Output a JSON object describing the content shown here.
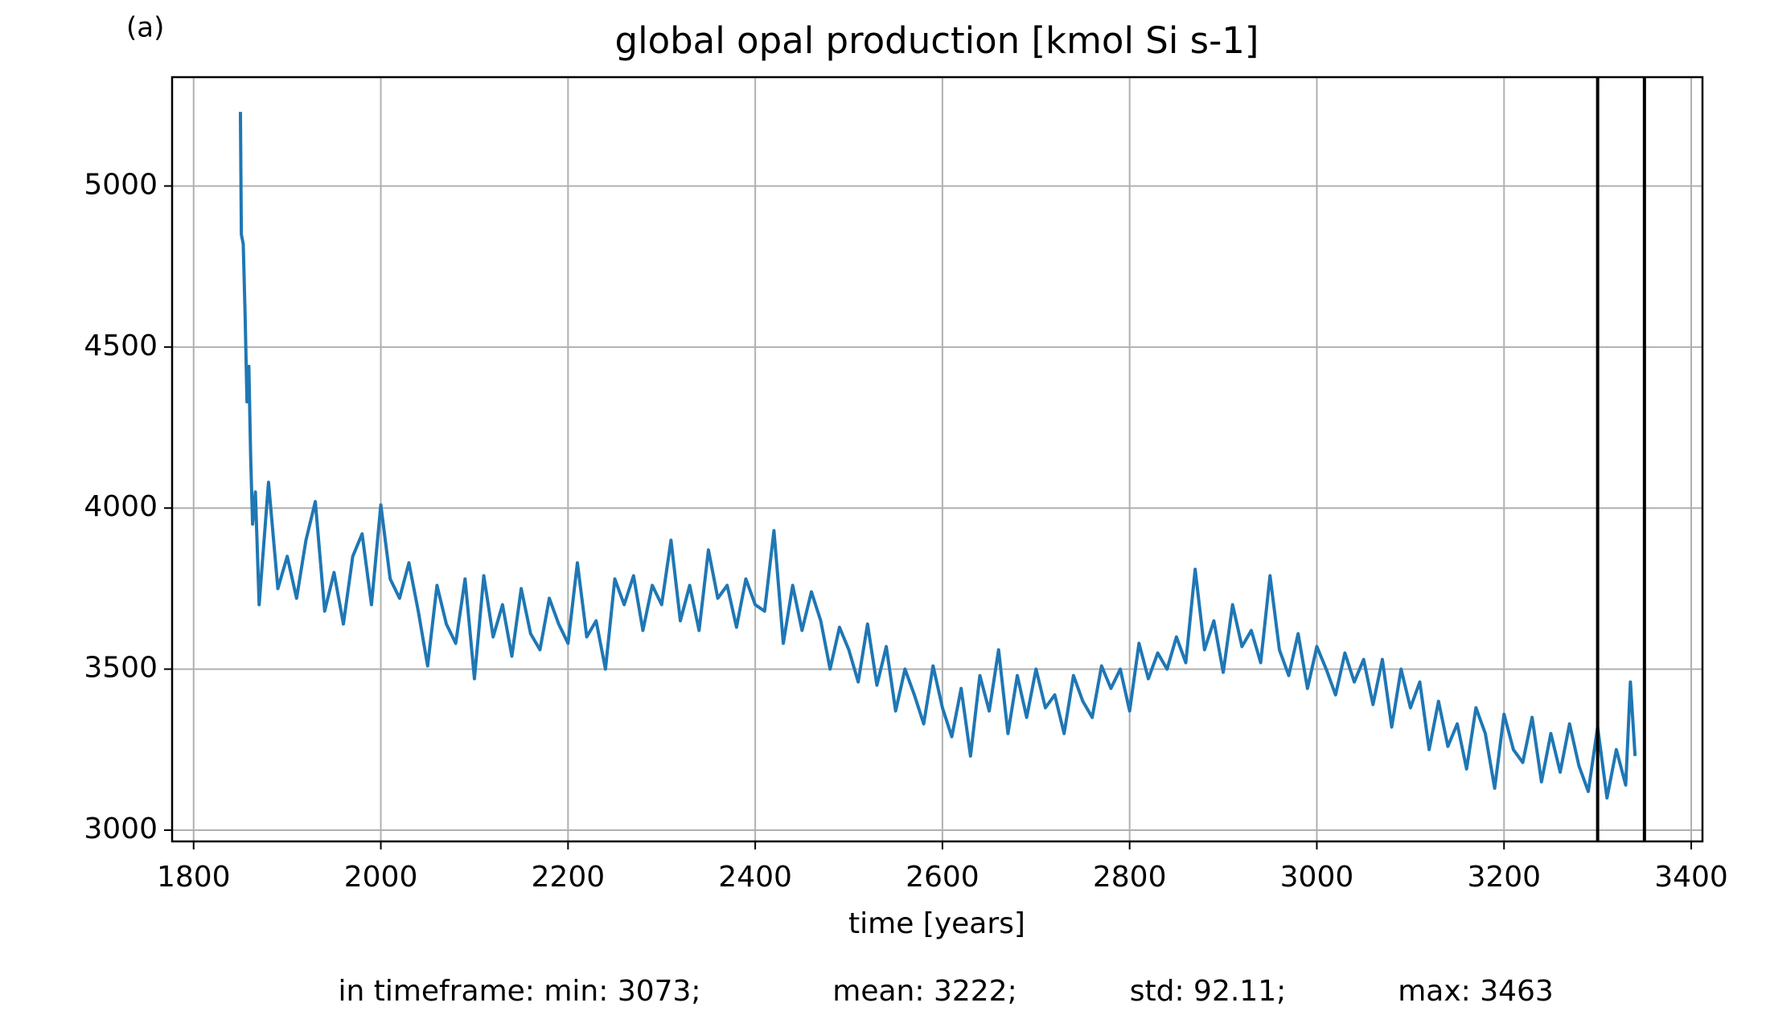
{
  "chart_data": {
    "type": "line",
    "panel_label": "(a)",
    "title": "global opal production [kmol Si s-1]",
    "x_label": "time [years]",
    "footer": [
      "in timeframe: min: 3073;",
      "mean: 3222;",
      "std: 92.11;",
      "max: 3463"
    ],
    "color": "#1f77b4",
    "grid": true,
    "xlim": [
      1777,
      3412
    ],
    "ylim": [
      2965,
      5338
    ],
    "xticks": [
      1800,
      2000,
      2200,
      2400,
      2600,
      2800,
      3000,
      3200,
      3400
    ],
    "yticks": [
      3000,
      3500,
      4000,
      4500,
      5000
    ],
    "vlines": [
      3300,
      3350
    ],
    "vline_color": "#000000",
    "x": [
      1850,
      1851,
      1853,
      1855,
      1857,
      1859,
      1861,
      1863,
      1866,
      1870,
      1880,
      1890,
      1900,
      1910,
      1920,
      1930,
      1940,
      1950,
      1960,
      1970,
      1980,
      1990,
      2000,
      2010,
      2020,
      2030,
      2040,
      2050,
      2060,
      2070,
      2080,
      2090,
      2100,
      2110,
      2120,
      2130,
      2140,
      2150,
      2160,
      2170,
      2180,
      2190,
      2200,
      2210,
      2220,
      2230,
      2240,
      2250,
      2260,
      2270,
      2280,
      2290,
      2300,
      2310,
      2320,
      2330,
      2340,
      2350,
      2360,
      2370,
      2380,
      2390,
      2400,
      2410,
      2420,
      2430,
      2440,
      2450,
      2460,
      2470,
      2480,
      2490,
      2500,
      2510,
      2520,
      2530,
      2540,
      2550,
      2560,
      2570,
      2580,
      2590,
      2600,
      2610,
      2620,
      2630,
      2640,
      2650,
      2660,
      2670,
      2680,
      2690,
      2700,
      2710,
      2720,
      2730,
      2740,
      2750,
      2760,
      2770,
      2780,
      2790,
      2800,
      2810,
      2820,
      2830,
      2840,
      2850,
      2860,
      2870,
      2880,
      2890,
      2900,
      2910,
      2920,
      2930,
      2940,
      2950,
      2960,
      2970,
      2980,
      2990,
      3000,
      3010,
      3020,
      3030,
      3040,
      3050,
      3060,
      3070,
      3080,
      3090,
      3100,
      3110,
      3120,
      3130,
      3140,
      3150,
      3160,
      3170,
      3180,
      3190,
      3200,
      3210,
      3220,
      3230,
      3240,
      3250,
      3260,
      3270,
      3280,
      3290,
      3300,
      3310,
      3320,
      3330,
      3335,
      3340
    ],
    "values": [
      5230,
      4850,
      4820,
      4600,
      4330,
      4440,
      4150,
      3950,
      4050,
      3700,
      4080,
      3750,
      3850,
      3720,
      3900,
      4020,
      3680,
      3800,
      3640,
      3850,
      3920,
      3700,
      4010,
      3780,
      3720,
      3830,
      3680,
      3510,
      3760,
      3640,
      3580,
      3780,
      3470,
      3790,
      3600,
      3700,
      3540,
      3750,
      3610,
      3560,
      3720,
      3640,
      3580,
      3830,
      3600,
      3650,
      3500,
      3780,
      3700,
      3790,
      3620,
      3760,
      3700,
      3900,
      3650,
      3760,
      3620,
      3870,
      3720,
      3760,
      3630,
      3780,
      3700,
      3680,
      3930,
      3580,
      3760,
      3620,
      3740,
      3650,
      3500,
      3630,
      3560,
      3460,
      3640,
      3450,
      3570,
      3370,
      3500,
      3420,
      3330,
      3510,
      3380,
      3290,
      3440,
      3230,
      3480,
      3370,
      3560,
      3300,
      3480,
      3350,
      3500,
      3380,
      3420,
      3300,
      3480,
      3400,
      3350,
      3510,
      3440,
      3500,
      3370,
      3580,
      3470,
      3550,
      3500,
      3600,
      3520,
      3810,
      3560,
      3650,
      3490,
      3700,
      3570,
      3620,
      3520,
      3790,
      3560,
      3480,
      3610,
      3440,
      3570,
      3500,
      3420,
      3550,
      3460,
      3530,
      3390,
      3530,
      3320,
      3500,
      3380,
      3460,
      3250,
      3400,
      3260,
      3330,
      3190,
      3380,
      3300,
      3130,
      3360,
      3250,
      3210,
      3350,
      3150,
      3300,
      3180,
      3330,
      3200,
      3120,
      3320,
      3100,
      3250,
      3140,
      3460,
      3230
    ]
  }
}
